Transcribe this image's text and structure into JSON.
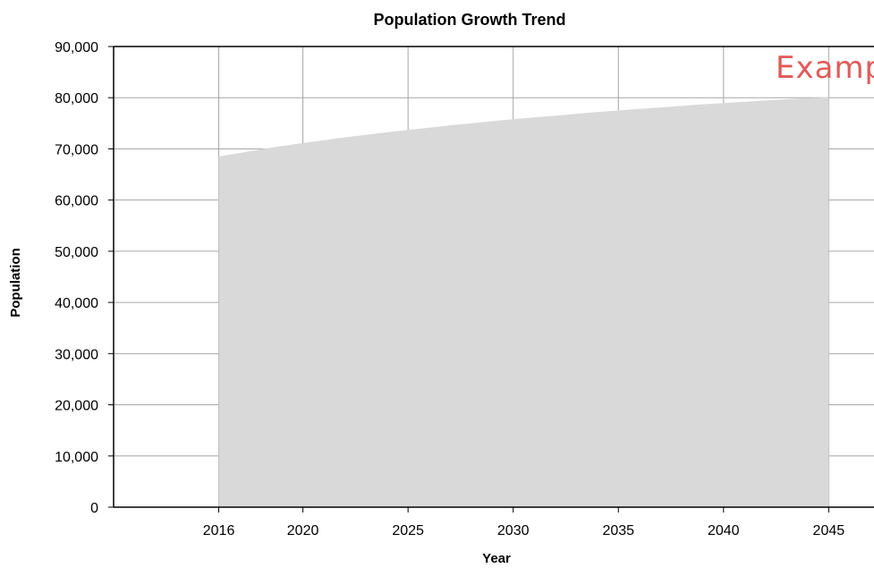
{
  "chart_data": {
    "type": "area",
    "title": "Population Growth Trend",
    "xlabel": "Year",
    "ylabel": "Population",
    "x": [
      2016,
      2017,
      2018,
      2019,
      2020,
      2021,
      2022,
      2023,
      2024,
      2025,
      2026,
      2027,
      2028,
      2029,
      2030,
      2031,
      2032,
      2033,
      2034,
      2035,
      2036,
      2037,
      2038,
      2039,
      2040,
      2041,
      2042,
      2043,
      2044,
      2045
    ],
    "series": [
      {
        "values": [
          68500,
          69200,
          69900,
          70550,
          71150,
          71700,
          72250,
          72750,
          73250,
          73700,
          74150,
          74600,
          75000,
          75400,
          75800,
          76150,
          76500,
          76850,
          77200,
          77500,
          77800,
          78100,
          78400,
          78700,
          78950,
          79200,
          79450,
          79700,
          79900,
          80100
        ],
        "color": "#d9d9d9"
      }
    ],
    "x_ticks": [
      "2016",
      "2020",
      "2025",
      "2030",
      "2035",
      "2040",
      "2045"
    ],
    "y_ticks": [
      "0",
      "10,000",
      "20,000",
      "30,000",
      "40,000",
      "50,000",
      "60,000",
      "70,000",
      "80,000",
      "90,000"
    ],
    "ylim": [
      0,
      90000
    ],
    "grid": true,
    "legend": "none",
    "watermark": {
      "text": "Example",
      "color": "#e05a5a"
    }
  }
}
